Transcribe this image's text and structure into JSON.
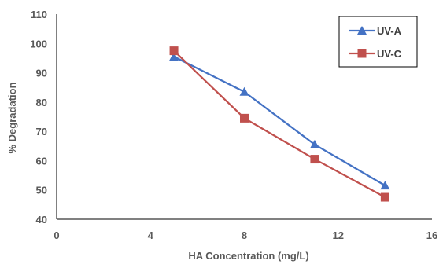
{
  "chart_data": {
    "type": "line",
    "xlabel": "HA Concentration (mg/L)",
    "ylabel": "% Degradation",
    "xlim": [
      0,
      16
    ],
    "ylim": [
      40,
      110
    ],
    "xticks": [
      0,
      4,
      8,
      12,
      16
    ],
    "yticks": [
      40,
      50,
      60,
      70,
      80,
      90,
      100,
      110
    ],
    "grid": false,
    "legend_position": "top-right",
    "series": [
      {
        "name": "UV-A",
        "color": "#4472C4",
        "marker": "triangle",
        "x": [
          5,
          8,
          11,
          14
        ],
        "y": [
          95.5,
          83.5,
          65.5,
          51.5
        ]
      },
      {
        "name": "UV-C",
        "color": "#C0504D",
        "marker": "square",
        "x": [
          5,
          8,
          11,
          14
        ],
        "y": [
          97.5,
          74.5,
          60.5,
          47.5
        ]
      }
    ]
  }
}
